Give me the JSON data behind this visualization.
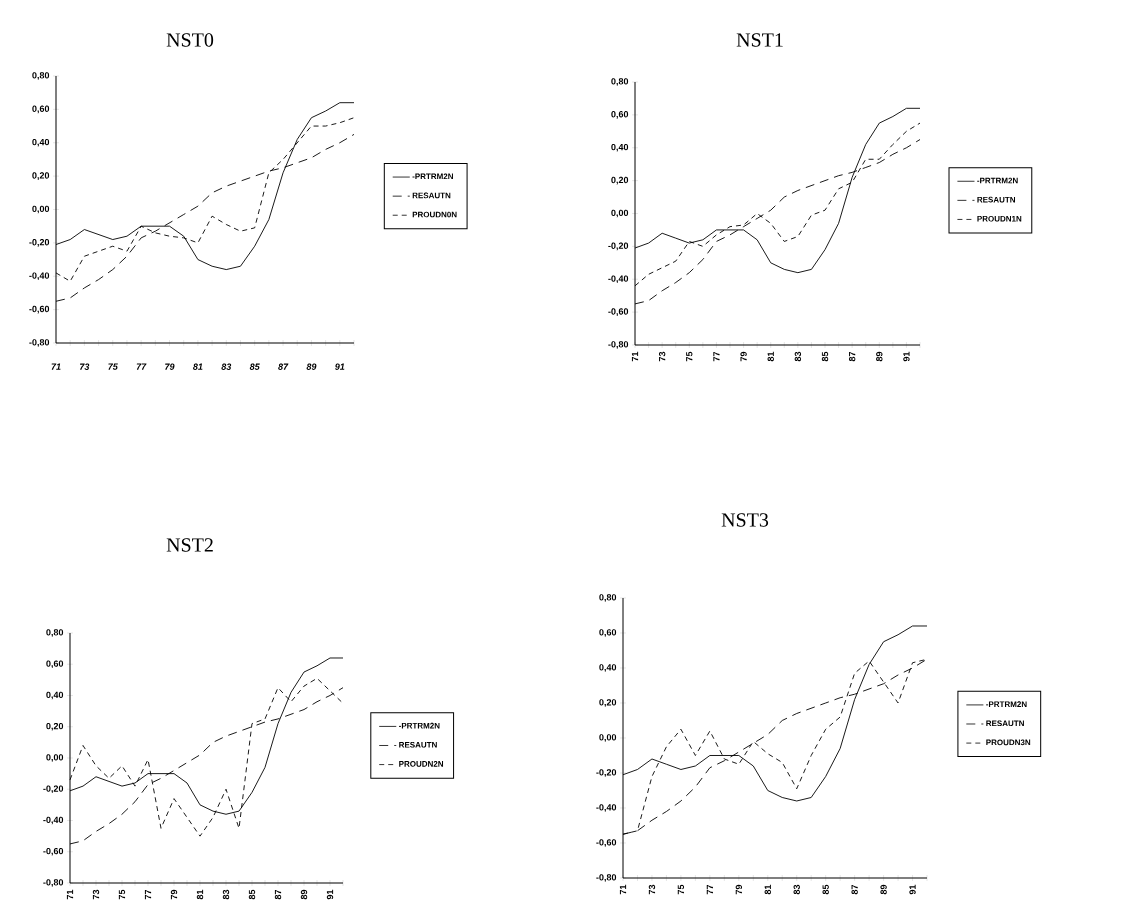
{
  "chart_data": [
    {
      "type": "line",
      "title": "NST0",
      "categories": [
        "71",
        null,
        "73",
        null,
        "75",
        null,
        "77",
        null,
        "79",
        null,
        "81",
        null,
        "83",
        null,
        "85",
        null,
        "87",
        null,
        "89",
        null,
        "91",
        null
      ],
      "ylim": [
        -0.8,
        0.8
      ],
      "yticks": [
        {
          "value": -0.8,
          "label": "-0,80"
        },
        {
          "value": -0.6,
          "label": "-0,60"
        },
        {
          "value": -0.4,
          "label": "-0,40"
        },
        {
          "value": -0.2,
          "label": "-0,20"
        },
        {
          "value": 0,
          "label": "0,00"
        },
        {
          "value": 0.2,
          "label": "0,20"
        },
        {
          "value": 0.4,
          "label": "0,40"
        },
        {
          "value": 0.6,
          "label": "0,60"
        },
        {
          "value": 0.8,
          "label": "0,80"
        }
      ],
      "legend": "right",
      "marker": "none",
      "series": [
        {
          "name": "-PRTRM2N",
          "color": "#000000",
          "line_style": "solid",
          "values": [
            -0.21,
            -0.18,
            -0.12,
            -0.15,
            -0.18,
            -0.16,
            -0.1,
            -0.1,
            -0.1,
            -0.16,
            -0.3,
            -0.34,
            -0.36,
            -0.34,
            -0.22,
            -0.06,
            0.22,
            0.42,
            0.55,
            0.59,
            0.64,
            0.64
          ]
        },
        {
          "name": "RESAUTN",
          "color": "#000000",
          "line_style": "dashed",
          "values": [
            -0.55,
            -0.53,
            -0.47,
            -0.42,
            -0.36,
            -0.28,
            -0.17,
            -0.13,
            -0.08,
            -0.03,
            0.02,
            0.1,
            0.14,
            0.17,
            0.2,
            0.23,
            0.25,
            0.28,
            0.31,
            0.36,
            0.4,
            0.45
          ]
        },
        {
          "name": "PROUDN0N",
          "color": "#000000",
          "line_style": "dashed",
          "values": [
            -0.38,
            -0.43,
            -0.28,
            -0.25,
            -0.22,
            -0.25,
            -0.1,
            -0.14,
            -0.16,
            -0.17,
            -0.2,
            -0.04,
            -0.09,
            -0.13,
            -0.11,
            0.22,
            0.3,
            0.4,
            0.5,
            0.5,
            0.52,
            0.55
          ]
        }
      ]
    },
    {
      "type": "line",
      "title": "NST1",
      "categories": [
        "71",
        null,
        "73",
        null,
        "75",
        null,
        "77",
        null,
        "79",
        null,
        "81",
        null,
        "83",
        null,
        "85",
        null,
        "87",
        null,
        "89",
        null,
        "91",
        null
      ],
      "ylim": [
        -0.8,
        0.8
      ],
      "yticks": [
        {
          "value": -0.8,
          "label": "-0,80"
        },
        {
          "value": -0.6,
          "label": "-0,60"
        },
        {
          "value": -0.4,
          "label": "-0,40"
        },
        {
          "value": -0.2,
          "label": "-0,20"
        },
        {
          "value": 0,
          "label": "0,00"
        },
        {
          "value": 0.2,
          "label": "0,20"
        },
        {
          "value": 0.4,
          "label": "0,40"
        },
        {
          "value": 0.6,
          "label": "0,60"
        },
        {
          "value": 0.8,
          "label": "0,80"
        }
      ],
      "legend": "right",
      "marker": "none",
      "series": [
        {
          "name": "-PRTRM2N",
          "color": "#000000",
          "line_style": "solid",
          "values": [
            -0.21,
            -0.18,
            -0.12,
            -0.15,
            -0.18,
            -0.16,
            -0.1,
            -0.1,
            -0.1,
            -0.16,
            -0.3,
            -0.34,
            -0.36,
            -0.34,
            -0.22,
            -0.06,
            0.22,
            0.42,
            0.55,
            0.59,
            0.64,
            0.64
          ]
        },
        {
          "name": "RESAUTN",
          "color": "#000000",
          "line_style": "dashed",
          "values": [
            -0.55,
            -0.53,
            -0.47,
            -0.42,
            -0.36,
            -0.28,
            -0.17,
            -0.13,
            -0.08,
            -0.03,
            0.02,
            0.1,
            0.14,
            0.17,
            0.2,
            0.23,
            0.25,
            0.28,
            0.31,
            0.36,
            0.4,
            0.45
          ]
        },
        {
          "name": "PROUDN1N",
          "color": "#000000",
          "line_style": "dashed",
          "values": [
            -0.44,
            -0.37,
            -0.33,
            -0.29,
            -0.17,
            -0.2,
            -0.13,
            -0.08,
            -0.07,
            0.0,
            -0.06,
            -0.17,
            -0.14,
            -0.01,
            0.02,
            0.15,
            0.19,
            0.33,
            0.33,
            0.42,
            0.5,
            0.55
          ]
        }
      ]
    },
    {
      "type": "line",
      "title": "NST2",
      "categories": [
        "71",
        null,
        "73",
        null,
        "75",
        null,
        "77",
        null,
        "79",
        null,
        "81",
        null,
        "83",
        null,
        "85",
        null,
        "87",
        null,
        "89",
        null,
        "91",
        null
      ],
      "ylim": [
        -0.8,
        0.8
      ],
      "yticks": [
        {
          "value": -0.8,
          "label": "-0,80"
        },
        {
          "value": -0.6,
          "label": "-0,60"
        },
        {
          "value": -0.4,
          "label": "-0,40"
        },
        {
          "value": -0.2,
          "label": "-0,20"
        },
        {
          "value": 0,
          "label": "0,00"
        },
        {
          "value": 0.2,
          "label": "0,20"
        },
        {
          "value": 0.4,
          "label": "0,40"
        },
        {
          "value": 0.6,
          "label": "0,60"
        },
        {
          "value": 0.8,
          "label": "0,80"
        }
      ],
      "legend": "right",
      "marker": "none",
      "series": [
        {
          "name": "-PRTRM2N",
          "color": "#000000",
          "line_style": "solid",
          "values": [
            -0.21,
            -0.18,
            -0.12,
            -0.15,
            -0.18,
            -0.16,
            -0.1,
            -0.1,
            -0.1,
            -0.16,
            -0.3,
            -0.34,
            -0.36,
            -0.34,
            -0.22,
            -0.06,
            0.22,
            0.42,
            0.55,
            0.59,
            0.64,
            0.64
          ]
        },
        {
          "name": "RESAUTN",
          "color": "#000000",
          "line_style": "dashed",
          "values": [
            -0.55,
            -0.53,
            -0.47,
            -0.42,
            -0.36,
            -0.28,
            -0.17,
            -0.13,
            -0.08,
            -0.03,
            0.02,
            0.1,
            0.14,
            0.17,
            0.2,
            0.23,
            0.25,
            0.28,
            0.31,
            0.36,
            0.4,
            0.45
          ]
        },
        {
          "name": "PROUDN2N",
          "color": "#000000",
          "line_style": "dashed",
          "values": [
            -0.14,
            0.08,
            -0.05,
            -0.13,
            -0.05,
            -0.18,
            -0.01,
            -0.45,
            -0.26,
            -0.38,
            -0.5,
            -0.38,
            -0.2,
            -0.45,
            0.22,
            0.25,
            0.45,
            0.36,
            0.46,
            0.51,
            0.43,
            0.35
          ]
        }
      ]
    },
    {
      "type": "line",
      "title": "NST3",
      "categories": [
        "71",
        null,
        "73",
        null,
        "75",
        null,
        "77",
        null,
        "79",
        null,
        "81",
        null,
        "83",
        null,
        "85",
        null,
        "87",
        null,
        "89",
        null,
        "91",
        null
      ],
      "ylim": [
        -0.8,
        0.8
      ],
      "yticks": [
        {
          "value": -0.8,
          "label": "-0,80"
        },
        {
          "value": -0.6,
          "label": "-0,60"
        },
        {
          "value": -0.4,
          "label": "-0,40"
        },
        {
          "value": -0.2,
          "label": "-0,20"
        },
        {
          "value": 0,
          "label": "0,00"
        },
        {
          "value": 0.2,
          "label": "0,20"
        },
        {
          "value": 0.4,
          "label": "0,40"
        },
        {
          "value": 0.6,
          "label": "0,60"
        },
        {
          "value": 0.8,
          "label": "0,80"
        }
      ],
      "legend": "right",
      "marker": "none",
      "series": [
        {
          "name": "-PRTRM2N",
          "color": "#000000",
          "line_style": "solid",
          "values": [
            -0.21,
            -0.18,
            -0.12,
            -0.15,
            -0.18,
            -0.16,
            -0.1,
            -0.1,
            -0.1,
            -0.16,
            -0.3,
            -0.34,
            -0.36,
            -0.34,
            -0.22,
            -0.06,
            0.22,
            0.42,
            0.55,
            0.59,
            0.64,
            0.64
          ]
        },
        {
          "name": "RESAUTN",
          "color": "#000000",
          "line_style": "dashed",
          "values": [
            -0.55,
            -0.53,
            -0.47,
            -0.42,
            -0.36,
            -0.28,
            -0.17,
            -0.13,
            -0.08,
            -0.03,
            0.02,
            0.1,
            0.14,
            0.17,
            0.2,
            0.23,
            0.25,
            0.28,
            0.31,
            0.36,
            0.4,
            0.45
          ]
        },
        {
          "name": "PROUDN3N",
          "color": "#000000",
          "line_style": "dashed",
          "values": [
            -0.55,
            -0.53,
            -0.22,
            -0.05,
            0.05,
            -0.1,
            0.04,
            -0.12,
            -0.15,
            -0.02,
            -0.09,
            -0.14,
            -0.29,
            -0.1,
            0.05,
            0.12,
            0.37,
            0.44,
            0.32,
            0.2,
            0.43,
            0.45
          ]
        }
      ]
    }
  ]
}
